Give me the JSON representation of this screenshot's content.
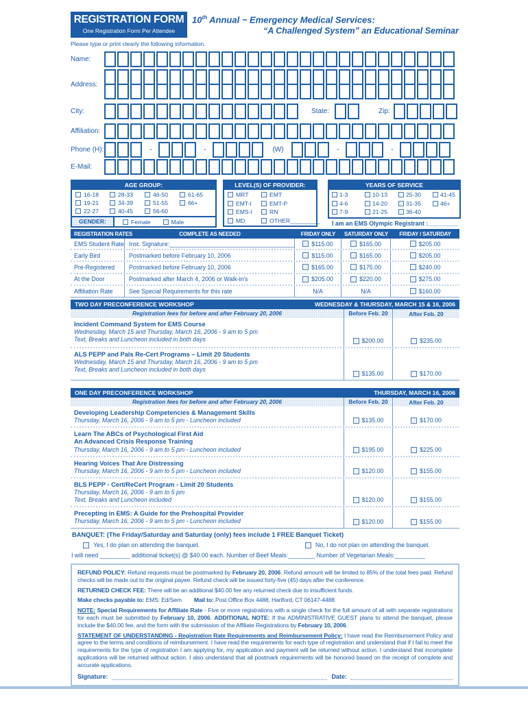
{
  "header": {
    "form_box": {
      "title": "REGISTRATION FORM",
      "subtitle": "One Registration Form Per Attendee"
    },
    "event_title_num": "10",
    "event_title_sup": "th",
    "event_title_rest": " Annual ~ Emergency Medical Services:",
    "event_subtitle": "“A Challenged System” an Educational Seminar",
    "instructions": "Please type or print clearly the following information."
  },
  "fields": {
    "name": {
      "label": "Name:",
      "boxes": 27
    },
    "address": {
      "label": "Address:",
      "boxes_row1": 27,
      "boxes_row2": 27
    },
    "city": {
      "label": "City:",
      "boxes": 15
    },
    "state": {
      "label": "State:",
      "boxes": 2
    },
    "zip": {
      "label": "Zip:",
      "boxes": 5
    },
    "affiliation": {
      "label": "Affiliation:",
      "boxes": 27
    },
    "phone": {
      "label": "Phone (H):",
      "w_label": "(W)",
      "dash": "-",
      "g1": 3,
      "g2": 3,
      "g3": 4,
      "g4": 3,
      "g5": 3,
      "g6": 4
    },
    "email": {
      "label": "E-Mail:",
      "boxes": 27
    }
  },
  "age_group": {
    "title": "AGE GROUP:",
    "options": [
      "16-18",
      "28-33",
      "46-50",
      "61-65",
      "19-21",
      "34-39",
      "51-55",
      "66+",
      "22-27",
      "40-45",
      "56-60"
    ]
  },
  "gender": {
    "label": "GENDER:",
    "options": [
      "Female",
      "Male"
    ]
  },
  "provider": {
    "title": "LEVEL(S) OF PROVIDER:",
    "options": [
      "MRT",
      "EMT",
      "EMT-I",
      "EMT-P",
      "EMS-I",
      "RN",
      "MD",
      "OTHER_________"
    ]
  },
  "years": {
    "title": "YEARS OF SERVICE",
    "options": [
      "1-3",
      "10-13",
      "25-30",
      "41-45",
      "4-6",
      "14-20",
      "31-35",
      "46+",
      "7-9",
      "21-25",
      "36-40"
    ]
  },
  "olympic": {
    "text": "I am an EMS Olympic Registrant :",
    "blank": "_________"
  },
  "rates": {
    "headers": [
      "REGISTRATION RATES",
      "COMPLETE AS NEEDED",
      "FRIDAY ONLY",
      "SATURDAY ONLY",
      "FRIDAY / SATURDAY"
    ],
    "rows": [
      {
        "name": "EMS Student Rate",
        "desc": "Inst. Signature:",
        "desc_blank": "________________________________________",
        "cells": [
          {
            "check": true,
            "text": "$115.00"
          },
          {
            "check": true,
            "text": "$165.00"
          },
          {
            "check": true,
            "text": "$205.00"
          }
        ]
      },
      {
        "name": "Early Bird",
        "desc": "Postmarked before February 10, 2006",
        "desc_blank": "",
        "cells": [
          {
            "check": true,
            "text": "$115.00"
          },
          {
            "check": true,
            "text": "$165.00"
          },
          {
            "check": true,
            "text": "$205.00"
          }
        ]
      },
      {
        "name": "Pre-Registered",
        "desc": "Postmarked before February 10, 2006",
        "desc_blank": "",
        "cells": [
          {
            "check": true,
            "text": "$165.00"
          },
          {
            "check": true,
            "text": "$175.00"
          },
          {
            "check": true,
            "text": "$240.00"
          }
        ]
      },
      {
        "name": "At the Door",
        "desc": "Postmarked after March 4, 2006 or Walk-in's",
        "desc_blank": "",
        "cells": [
          {
            "check": true,
            "text": "$205.00"
          },
          {
            "check": true,
            "text": "$220.00"
          },
          {
            "check": true,
            "text": "$275.00"
          }
        ]
      },
      {
        "name": "Affiliation Rate",
        "desc": "See Special Requirements for this rate",
        "desc_blank": "",
        "cells": [
          {
            "check": false,
            "text": "N/A"
          },
          {
            "check": false,
            "text": "N/A"
          },
          {
            "check": true,
            "text": "$160.00"
          }
        ]
      }
    ]
  },
  "two_day": {
    "title": "TWO DAY PRECONFERENCE WORKSHOP",
    "date": "WEDNESDAY & THURSDAY, MARCH 15 & 16, 2006",
    "fees_note": "Registration fees for before and after February 20, 2006",
    "col_before": "Before Feb. 20",
    "col_after": "After Feb. 20",
    "rows": [
      {
        "titles": [
          "Incident Command System for EMS Course"
        ],
        "details": [
          "Wednesday, March 15 and Thursday, March 16, 2006 - 9 am to 5 pm",
          "Text, Breaks and Luncheon included in both days"
        ],
        "before": "$200.00",
        "after": "$235.00"
      },
      {
        "titles": [
          "ALS PEPP and Pals Re-Cert Programs – Limit 20 Students"
        ],
        "details": [
          "Wednesday, March 15 and Thursday, March 16, 2006 - 9 am to 5 pm",
          "Text, Breaks and Luncheon included in both days"
        ],
        "before": "$135.00",
        "after": "$170.00"
      }
    ]
  },
  "one_day": {
    "title": "ONE DAY PRECONFERENCE WORKSHOP",
    "date": "THURSDAY, MARCH 16, 2006",
    "fees_note": "Registration fees for before and after February 20, 2006",
    "col_before": "Before Feb. 20",
    "col_after": "After Feb. 20",
    "rows": [
      {
        "titles": [
          "Developing Leadership Competencies & Management Skills"
        ],
        "details": [
          "Thursday, March 16, 2006 - 9 am to 5 pm - Luncheon included"
        ],
        "before": "$135.00",
        "after": "$170.00"
      },
      {
        "titles": [
          "Learn The ABCs of Psychological First Aid",
          "An Advanced Crisis Response Training"
        ],
        "details": [
          "Thursday, March 16, 2006 - 9 am to 5 pm - Luncheon included"
        ],
        "before": "$195.00",
        "after": "$225.00"
      },
      {
        "titles": [
          "Hearing Voices That Are Distressing"
        ],
        "details": [
          "Thursday, March 16, 2006 - 9 am to 5 pm - Luncheon included"
        ],
        "before": "$120.00",
        "after": "$155.00"
      },
      {
        "titles": [
          "BLS PEPP - Cert/ReCert Program - Limit 20 Students"
        ],
        "details": [
          "Thursday, March 16, 2006 - 9 am to 5 pm",
          "Text, Breaks and Luncheon included"
        ],
        "before": "$120.00",
        "after": "$155.00"
      },
      {
        "titles": [
          "Precepting in EMS: A Guide for the Prehospital Provider"
        ],
        "details": [
          "Thursday, March 16, 2006 - 9 am to 5 pm - Luncheon included"
        ],
        "before": "$120.00",
        "after": "$155.00"
      }
    ]
  },
  "banquet": {
    "heading": "BANQUET: (The Friday/Saturday and Saturday (only) fees include 1 FREE Banquet Ticket)",
    "yes_label": "Yes, I do plan on attending the banquet.",
    "no_label": "No, I do not plan on attending the banquet.",
    "need_line": [
      {
        "t": "I will need "
      },
      {
        "t": "_________"
      },
      {
        "t": " additional ticket(s) @ $40.00 each.  Number of Beef Meals:"
      },
      {
        "t": "________"
      },
      {
        "t": " Number of Vegetarian Meals:"
      },
      {
        "t": "_________"
      }
    ]
  },
  "policy": {
    "refund": [
      {
        "t": "REFUND POLICY:",
        "b": 1
      },
      {
        "t": " Refund requests must be postmarked by "
      },
      {
        "t": "February 20, 2006",
        "b": 1
      },
      {
        "t": ".  Refund amount will be limited to 85% of the total fees paid.  Refund checks will be made out to the original payee.  Refund check will be issued forty-five (45) days after the conference."
      }
    ],
    "returned": [
      {
        "t": "RETURNED CHECK FEE:",
        "b": 1
      },
      {
        "t": " There will be an additional $40.00 fee any returned check due to insufficient funds."
      }
    ],
    "checks": [
      {
        "t": "Make checks payable to: ",
        "b": 1
      },
      {
        "t": "EMS: Ed/Sem"
      },
      {
        "t": "        "
      },
      {
        "t": "Mail to: ",
        "b": 1
      },
      {
        "t": "Post Office Box 4488, Hartford, CT 06147-4488"
      }
    ],
    "note": [
      {
        "t": "NOTE:",
        "b": 1,
        "u": 1
      },
      {
        "t": " Special Requirements for Affiliate Rate",
        "b": 1
      },
      {
        "t": " - Five or more registrations with a single check for the full amount of all with separate registrations for each must be submitted by "
      },
      {
        "t": "February 10, 2006",
        "b": 1
      },
      {
        "t": ".  "
      },
      {
        "t": "ADDITIONAL NOTE:",
        "b": 1
      },
      {
        "t": " If the ADMINISTRATIVE GUEST plans to attend the banquet, please include the $40.00 fee, and the form with the submission of the Affiliate Registrations by "
      },
      {
        "t": "February 10, 2006",
        "b": 1
      },
      {
        "t": "."
      }
    ],
    "statement": [
      {
        "t": "STATEMENT OF UNDERSTANDING - Registration Rate Requirements and Reimbursement Policy:",
        "b": 1,
        "u": 1
      },
      {
        "t": " I have read the Reimbursement Policy and agree to the terms and conditions of reimbursement.  I have read the requirements for each type of registration and understand that if I fail to meet the requirements for the type of registration I am applying for, my application and payment will be returned without action.  I understand that incomplete applications will be returned without action.  I also understand that all postmark requirements will be honored based on the receipt of complete and accurate applications."
      }
    ],
    "signature_label": "Signature:",
    "date_label": "Date:"
  }
}
